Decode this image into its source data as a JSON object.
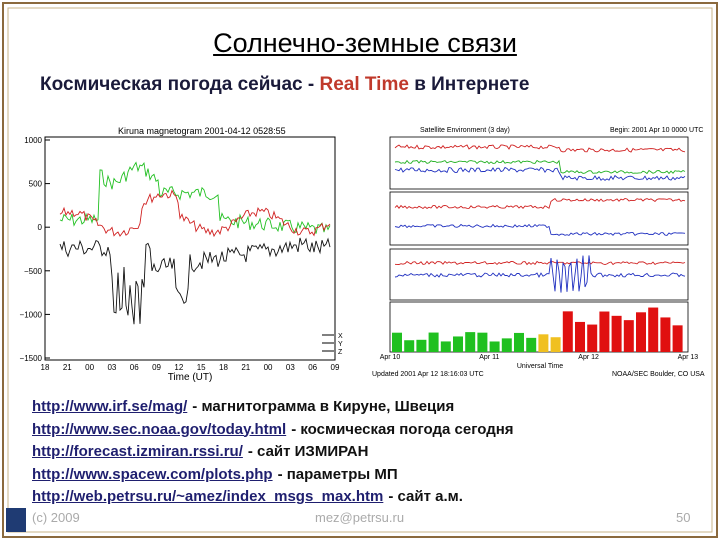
{
  "title": "Солнечно-земные связи",
  "subtitle": {
    "before": "Космическая погода сейчас -",
    "highlight": "Real Time",
    "after": "в Интернете"
  },
  "magnetogram": {
    "title": "Kiruna magnetogram 2001-04-12 0528:55",
    "yticks": [
      "1000",
      "500",
      "0",
      "−500",
      "−1000",
      "−1500"
    ],
    "xticks": [
      "18",
      "21",
      "00",
      "03",
      "06",
      "09",
      "12",
      "15",
      "18",
      "21",
      "00",
      "03",
      "06",
      "09"
    ],
    "xlabel": "Time (UT)",
    "legend": [
      "X",
      "Y",
      "Z"
    ]
  },
  "satellite": {
    "title": "Satellite Environment (3 day)",
    "begin": "Begin: 2001 Apr 10 0000 UTC",
    "xticks": [
      "Apr 10",
      "Apr 11",
      "Apr 12",
      "Apr 13"
    ],
    "xlabel": "Universal Time",
    "updated": "Updated 2001 Apr 12 18:16:03 UTC",
    "source": "NOAA/SEC Boulder, CO USA"
  },
  "links": [
    {
      "url": "http://www.irf.se/mag/",
      "text": "- магнитограмма в Кируне, Швеция"
    },
    {
      "url": "http://www.sec.noaa.gov/today.html",
      "text": "- космическая погода сегодня"
    },
    {
      "url": "http://forecast.izmiran.rssi.ru/",
      "text": "- сайт ИЗМИРАН"
    },
    {
      "url": "http://www.spacew.com/plots.php",
      "text": "- параметры МП"
    },
    {
      "url": "http://web.petrsu.ru/~amez/index_msgs_max.htm",
      "text": "- сайт а.м."
    }
  ],
  "footer": {
    "copyright": "(c) 2009",
    "email": "mez@petrsu.ru",
    "page": "50"
  }
}
